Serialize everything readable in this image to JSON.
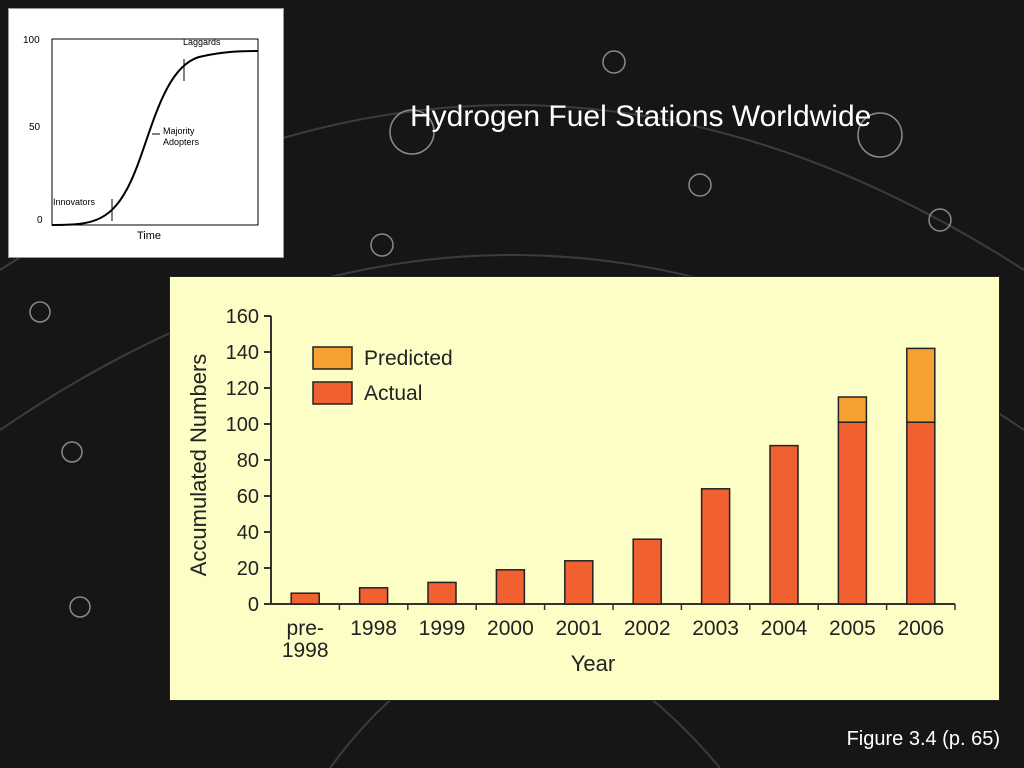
{
  "slide": {
    "title": "Hydrogen Fuel Stations Worldwide",
    "caption": "Figure 3.4 (p. 65)"
  },
  "inset_chart": {
    "type": "line",
    "y_ticks": [
      "100",
      "50",
      "0"
    ],
    "xlabel": "Time",
    "annotations": [
      "Laggards",
      "Majority",
      "Adopters",
      "Innovators"
    ]
  },
  "chart_data": {
    "type": "bar",
    "xlabel": "Year",
    "ylabel": "Accumulated Numbers",
    "ylim": [
      0,
      160
    ],
    "y_ticks": [
      0,
      20,
      40,
      60,
      80,
      100,
      120,
      140,
      160
    ],
    "categories": [
      "pre-1998",
      "1998",
      "1999",
      "2000",
      "2001",
      "2002",
      "2003",
      "2004",
      "2005",
      "2006"
    ],
    "category_labels": [
      [
        "pre-",
        "1998"
      ],
      [
        "1998"
      ],
      [
        "1999"
      ],
      [
        "2000"
      ],
      [
        "2001"
      ],
      [
        "2002"
      ],
      [
        "2003"
      ],
      [
        "2004"
      ],
      [
        "2005"
      ],
      [
        "2006"
      ]
    ],
    "series": [
      {
        "name": "Actual",
        "color": "#f06030",
        "values": [
          6,
          9,
          12,
          19,
          24,
          36,
          64,
          88,
          101,
          101
        ]
      },
      {
        "name": "Predicted",
        "color": "#f5a030",
        "values": [
          0,
          0,
          0,
          0,
          0,
          0,
          0,
          0,
          14,
          41
        ]
      }
    ],
    "stacked": true,
    "legend": [
      "Predicted",
      "Actual"
    ],
    "legend_position": "top-left"
  }
}
